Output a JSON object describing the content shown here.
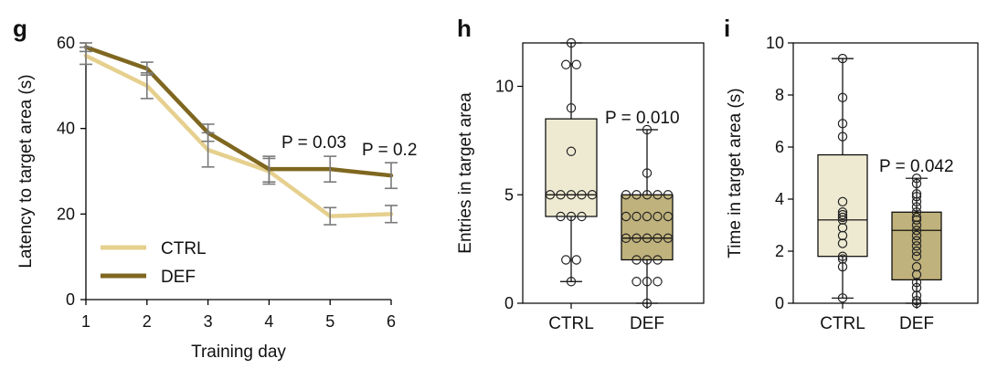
{
  "colors": {
    "ctrl_line": "#e6d08e",
    "def_line": "#7f6720",
    "ctrl_box": "#eeead2",
    "def_box": "#c0b27c",
    "axis": "#000000",
    "errorbar": "#7a7a7a"
  },
  "chart_data": [
    {
      "panel": "g",
      "type": "line",
      "xlabel": "Training day",
      "ylabel": "Latency to target area (s)",
      "x": [
        1,
        2,
        3,
        4,
        5,
        6
      ],
      "xticks": [
        "1",
        "2",
        "3",
        "4",
        "5",
        "6"
      ],
      "ylim": [
        0,
        60
      ],
      "yticks": [
        "0",
        "20",
        "40",
        "60"
      ],
      "series": [
        {
          "name": "CTRL",
          "color": "#e6d08e",
          "values": [
            57,
            50,
            35,
            30,
            19.5,
            20
          ],
          "err": [
            2,
            3,
            4,
            3,
            2,
            2
          ]
        },
        {
          "name": "DEF",
          "color": "#7f6720",
          "values": [
            59,
            54,
            39,
            30.5,
            30.5,
            29
          ],
          "err": [
            1,
            1.5,
            2,
            3,
            3,
            3
          ]
        }
      ],
      "annotations": [
        {
          "text": "P = 0.03",
          "x": 5,
          "y": 36
        },
        {
          "text": "P = 0.2",
          "x": 6,
          "y": 34
        }
      ],
      "legend": "bottom-left"
    },
    {
      "panel": "h",
      "type": "box",
      "ylabel": "Entries in target area",
      "categories": [
        "CTRL",
        "DEF"
      ],
      "ylim": [
        0,
        12
      ],
      "yticks": [
        "0",
        "5",
        "10"
      ],
      "boxes": [
        {
          "name": "CTRL",
          "color": "#eeead2",
          "min": 1,
          "q1": 4,
          "median": 5,
          "q3": 8.5,
          "max": 12,
          "points": [
            12,
            11,
            11,
            9,
            7,
            5,
            5,
            5,
            5,
            5,
            4,
            4,
            4,
            2,
            2,
            1
          ]
        },
        {
          "name": "DEF",
          "color": "#c0b27c",
          "min": 0,
          "q1": 2,
          "median": 3,
          "q3": 5,
          "max": 8,
          "points": [
            8,
            6,
            5,
            5,
            5,
            5,
            5,
            4,
            4,
            4,
            4,
            4,
            3,
            3,
            3,
            3,
            3,
            2,
            2,
            2,
            1,
            1,
            1,
            0
          ]
        }
      ],
      "annotation": "P = 0.010"
    },
    {
      "panel": "i",
      "type": "box",
      "ylabel": "Time in target area (s)",
      "categories": [
        "CTRL",
        "DEF"
      ],
      "ylim": [
        0,
        10
      ],
      "yticks": [
        "0",
        "2",
        "4",
        "6",
        "8",
        "10"
      ],
      "boxes": [
        {
          "name": "CTRL",
          "color": "#eeead2",
          "min": 0.2,
          "q1": 1.8,
          "median": 3.2,
          "q3": 5.7,
          "max": 9.4,
          "points": [
            9.4,
            7.9,
            6.9,
            6.4,
            3.9,
            3.5,
            3.4,
            3.3,
            3.2,
            2.9,
            2.6,
            2.3,
            1.8,
            1.7,
            1.4,
            0.2
          ]
        },
        {
          "name": "DEF",
          "color": "#c0b27c",
          "min": 0,
          "q1": 0.9,
          "median": 2.8,
          "q3": 3.5,
          "max": 4.8,
          "points": [
            4.8,
            4.6,
            4.2,
            4.1,
            3.9,
            3.7,
            3.5,
            3.3,
            3.2,
            3.0,
            2.8,
            2.6,
            2.4,
            2.2,
            2.0,
            1.8,
            1.4,
            1.1,
            0.8,
            0.6,
            0.3,
            0.1,
            0
          ]
        }
      ],
      "annotation": "P = 0.042"
    }
  ]
}
